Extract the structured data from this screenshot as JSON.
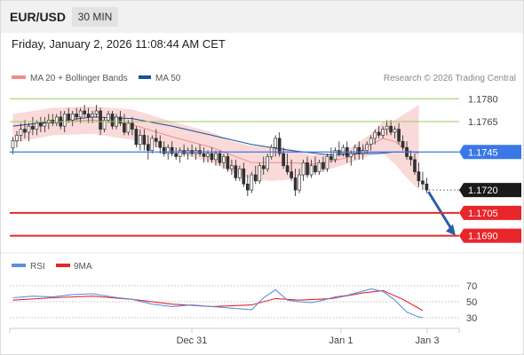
{
  "header": {
    "pair": "EUR/USD",
    "timeframe": "30 MIN",
    "timestamp": "Friday, January 2, 2026 11:08:44 AM CET"
  },
  "legend": {
    "ma20_label": "MA 20 + Bollinger Bands",
    "ma20_color": "#f08c8c",
    "ma50_label": "MA 50",
    "ma50_color": "#1f4e9c",
    "copyright": "Research © 2026 Trading Central"
  },
  "colors": {
    "up_candle": "#ffffff",
    "down_candle": "#333333",
    "candle_outline": "#222222",
    "bollinger_fill": "#fad9d9",
    "resistance": "#9acd5a",
    "pivot": "#3b78e7",
    "support": "#e8262b",
    "current": "#1a1a1a",
    "arrow": "#2a5ea6",
    "rsi": "#5b8fe0",
    "rsi_ma": "#e8262b"
  },
  "levels": [
    {
      "label": "1.1780",
      "value": 1.178,
      "type": "resistance"
    },
    {
      "label": "1.1765",
      "value": 1.1765,
      "type": "resistance"
    },
    {
      "label": "1.1745",
      "value": 1.1745,
      "type": "pivot"
    },
    {
      "label": "1.1720",
      "value": 1.172,
      "type": "current"
    },
    {
      "label": "1.1705",
      "value": 1.1705,
      "type": "support"
    },
    {
      "label": "1.1690",
      "value": 1.169,
      "type": "support"
    }
  ],
  "rsi_panel": {
    "rsi_label": "RSI",
    "ma_label": "9MA",
    "ticks": [
      {
        "label": "70",
        "value": 70
      },
      {
        "label": "50",
        "value": 50
      },
      {
        "label": "30",
        "value": 30
      }
    ]
  },
  "x_axis": {
    "labels": [
      "Dec 31",
      "Jan 1",
      "Jan 3"
    ]
  },
  "chart_data": {
    "type": "candlestick",
    "instrument": "EUR/USD",
    "ylim": [
      1.1681,
      1.1786
    ],
    "projection": {
      "from": 1.172,
      "to": 1.169
    },
    "candles": [
      [
        1.17476,
        1.17548,
        1.17436,
        1.17524
      ],
      [
        1.17524,
        1.17588,
        1.1748,
        1.1756
      ],
      [
        1.1756,
        1.1764,
        1.1752,
        1.176
      ],
      [
        1.176,
        1.1766,
        1.1754,
        1.1758
      ],
      [
        1.1758,
        1.1764,
        1.1752,
        1.1762
      ],
      [
        1.1762,
        1.1768,
        1.1756,
        1.176
      ],
      [
        1.176,
        1.1766,
        1.1756,
        1.1764
      ],
      [
        1.1764,
        1.1768,
        1.1758,
        1.1762
      ],
      [
        1.1762,
        1.1768,
        1.1758,
        1.1764
      ],
      [
        1.1764,
        1.177,
        1.176,
        1.1766
      ],
      [
        1.1766,
        1.177,
        1.1762,
        1.1764
      ],
      [
        1.1764,
        1.177,
        1.1762,
        1.1768
      ],
      [
        1.1768,
        1.1772,
        1.176,
        1.1762
      ],
      [
        1.1762,
        1.1772,
        1.1758,
        1.177
      ],
      [
        1.177,
        1.1774,
        1.1764,
        1.1766
      ],
      [
        1.1766,
        1.1772,
        1.1762,
        1.177
      ],
      [
        1.177,
        1.1774,
        1.1766,
        1.1768
      ],
      [
        1.1768,
        1.1774,
        1.1764,
        1.1772
      ],
      [
        1.1772,
        1.1776,
        1.1768,
        1.177
      ],
      [
        1.177,
        1.1774,
        1.1764,
        1.1768
      ],
      [
        1.1768,
        1.1772,
        1.1764,
        1.177
      ],
      [
        1.177,
        1.1776,
        1.1768,
        1.1772
      ],
      [
        1.1772,
        1.1774,
        1.1756,
        1.176
      ],
      [
        1.176,
        1.1768,
        1.1758,
        1.1766
      ],
      [
        1.1766,
        1.1772,
        1.1764,
        1.177
      ],
      [
        1.177,
        1.1772,
        1.176,
        1.1762
      ],
      [
        1.1762,
        1.177,
        1.176,
        1.1768
      ],
      [
        1.1768,
        1.1772,
        1.1762,
        1.1764
      ],
      [
        1.1764,
        1.177,
        1.1756,
        1.1758
      ],
      [
        1.1758,
        1.1766,
        1.1756,
        1.1764
      ],
      [
        1.1764,
        1.1768,
        1.1756,
        1.176
      ],
      [
        1.176,
        1.1762,
        1.1748,
        1.175
      ],
      [
        1.175,
        1.176,
        1.1746,
        1.1756
      ],
      [
        1.1756,
        1.176,
        1.1746,
        1.175
      ],
      [
        1.175,
        1.1756,
        1.174,
        1.1746
      ],
      [
        1.1746,
        1.1756,
        1.1744,
        1.1754
      ],
      [
        1.1754,
        1.176,
        1.1748,
        1.1752
      ],
      [
        1.1752,
        1.1756,
        1.1744,
        1.1748
      ],
      [
        1.1748,
        1.1752,
        1.1742,
        1.1744
      ],
      [
        1.1744,
        1.175,
        1.174,
        1.1748
      ],
      [
        1.1748,
        1.1752,
        1.1742,
        1.1744
      ],
      [
        1.1744,
        1.1748,
        1.174,
        1.1742
      ],
      [
        1.1742,
        1.1748,
        1.1738,
        1.1746
      ],
      [
        1.1746,
        1.175,
        1.1742,
        1.1744
      ],
      [
        1.1744,
        1.1748,
        1.174,
        1.1746
      ],
      [
        1.1746,
        1.175,
        1.1742,
        1.1744
      ],
      [
        1.1744,
        1.1748,
        1.174,
        1.1746
      ],
      [
        1.1746,
        1.175,
        1.1742,
        1.1744
      ],
      [
        1.1744,
        1.1748,
        1.1738,
        1.1742
      ],
      [
        1.1742,
        1.1746,
        1.1738,
        1.1744
      ],
      [
        1.1744,
        1.1748,
        1.1738,
        1.174
      ],
      [
        1.174,
        1.1746,
        1.1736,
        1.1744
      ],
      [
        1.1744,
        1.1746,
        1.1736,
        1.1738
      ],
      [
        1.1738,
        1.1744,
        1.1734,
        1.1742
      ],
      [
        1.1742,
        1.1744,
        1.1732,
        1.1734
      ],
      [
        1.1734,
        1.174,
        1.173,
        1.1736
      ],
      [
        1.1736,
        1.174,
        1.1726,
        1.1728
      ],
      [
        1.1728,
        1.1736,
        1.1726,
        1.1734
      ],
      [
        1.1734,
        1.1738,
        1.1722,
        1.1724
      ],
      [
        1.1724,
        1.173,
        1.1716,
        1.172
      ],
      [
        1.172,
        1.1732,
        1.1718,
        1.173
      ],
      [
        1.173,
        1.1736,
        1.1724,
        1.1726
      ],
      [
        1.1726,
        1.1738,
        1.1724,
        1.1736
      ],
      [
        1.1736,
        1.1742,
        1.173,
        1.1734
      ],
      [
        1.1734,
        1.1744,
        1.1732,
        1.1742
      ],
      [
        1.1742,
        1.175,
        1.174,
        1.1748
      ],
      [
        1.1748,
        1.1756,
        1.1742,
        1.1754
      ],
      [
        1.1754,
        1.1758,
        1.1742,
        1.1744
      ],
      [
        1.1744,
        1.1748,
        1.1734,
        1.1736
      ],
      [
        1.1736,
        1.1744,
        1.173,
        1.1732
      ],
      [
        1.1732,
        1.174,
        1.1726,
        1.1728
      ],
      [
        1.1728,
        1.1734,
        1.1716,
        1.172
      ],
      [
        1.172,
        1.1734,
        1.1718,
        1.173
      ],
      [
        1.173,
        1.174,
        1.1726,
        1.1738
      ],
      [
        1.1738,
        1.1742,
        1.1728,
        1.173
      ],
      [
        1.173,
        1.174,
        1.1728,
        1.1736
      ],
      [
        1.1736,
        1.1742,
        1.173,
        1.1732
      ],
      [
        1.1732,
        1.174,
        1.173,
        1.1738
      ],
      [
        1.1738,
        1.1742,
        1.1732,
        1.1734
      ],
      [
        1.1734,
        1.1744,
        1.1732,
        1.1742
      ],
      [
        1.1742,
        1.1748,
        1.1738,
        1.174
      ],
      [
        1.174,
        1.1748,
        1.1738,
        1.1746
      ],
      [
        1.1746,
        1.1752,
        1.1742,
        1.1744
      ],
      [
        1.1744,
        1.175,
        1.1742,
        1.1748
      ],
      [
        1.1748,
        1.1752,
        1.1738,
        1.1742
      ],
      [
        1.1742,
        1.1746,
        1.1736,
        1.1744
      ],
      [
        1.1744,
        1.175,
        1.174,
        1.1748
      ],
      [
        1.1748,
        1.1752,
        1.174,
        1.1744
      ],
      [
        1.1744,
        1.175,
        1.174,
        1.1746
      ],
      [
        1.1746,
        1.1752,
        1.1744,
        1.175
      ],
      [
        1.175,
        1.1756,
        1.1746,
        1.1754
      ],
      [
        1.1754,
        1.176,
        1.175,
        1.1758
      ],
      [
        1.1758,
        1.1762,
        1.1754,
        1.1756
      ],
      [
        1.1756,
        1.1762,
        1.1754,
        1.176
      ],
      [
        1.176,
        1.1766,
        1.1756,
        1.1762
      ],
      [
        1.1762,
        1.1766,
        1.1756,
        1.1758
      ],
      [
        1.1758,
        1.1762,
        1.1754,
        1.176
      ],
      [
        1.176,
        1.1764,
        1.175,
        1.1752
      ],
      [
        1.1752,
        1.1756,
        1.1746,
        1.1748
      ],
      [
        1.1748,
        1.1752,
        1.174,
        1.1742
      ],
      [
        1.1742,
        1.1746,
        1.1736,
        1.174
      ],
      [
        1.174,
        1.1744,
        1.173,
        1.1732
      ],
      [
        1.1732,
        1.1738,
        1.1722,
        1.1726
      ],
      [
        1.1726,
        1.1732,
        1.172,
        1.1724
      ],
      [
        1.1724,
        1.1728,
        1.1718,
        1.172
      ]
    ],
    "ma20": [
      [
        0,
        1.1762
      ],
      [
        10,
        1.1765
      ],
      [
        20,
        1.1766
      ],
      [
        30,
        1.1763
      ],
      [
        40,
        1.1755
      ],
      [
        50,
        1.1748
      ],
      [
        55,
        1.1743
      ],
      [
        60,
        1.1738
      ],
      [
        65,
        1.1738
      ],
      [
        70,
        1.1738
      ],
      [
        75,
        1.1737
      ],
      [
        80,
        1.1739
      ],
      [
        85,
        1.1742
      ],
      [
        90,
        1.175
      ],
      [
        93,
        1.1754
      ],
      [
        96,
        1.1752
      ],
      [
        99,
        1.1746
      ],
      [
        102,
        1.1744
      ]
    ],
    "ma50": [
      [
        0,
        1.1762
      ],
      [
        20,
        1.1768
      ],
      [
        30,
        1.1767
      ],
      [
        40,
        1.1762
      ],
      [
        50,
        1.1756
      ],
      [
        60,
        1.175
      ],
      [
        70,
        1.1746
      ],
      [
        80,
        1.1743
      ],
      [
        88,
        1.1744
      ],
      [
        92,
        1.1744
      ],
      [
        96,
        1.1745
      ],
      [
        102,
        1.1745
      ]
    ],
    "bollinger_upper": [
      [
        0,
        1.177
      ],
      [
        10,
        1.1774
      ],
      [
        20,
        1.1775
      ],
      [
        30,
        1.1773
      ],
      [
        40,
        1.1765
      ],
      [
        50,
        1.1758
      ],
      [
        55,
        1.1752
      ],
      [
        60,
        1.1749
      ],
      [
        65,
        1.1748
      ],
      [
        70,
        1.1747
      ],
      [
        75,
        1.1743
      ],
      [
        80,
        1.1744
      ],
      [
        85,
        1.1748
      ],
      [
        90,
        1.1757
      ],
      [
        93,
        1.1765
      ],
      [
        96,
        1.1766
      ],
      [
        99,
        1.1771
      ],
      [
        102,
        1.1776
      ]
    ],
    "bollinger_lower": [
      [
        0,
        1.1751
      ],
      [
        10,
        1.1756
      ],
      [
        20,
        1.1757
      ],
      [
        30,
        1.1753
      ],
      [
        40,
        1.1745
      ],
      [
        50,
        1.1738
      ],
      [
        55,
        1.1732
      ],
      [
        60,
        1.1727
      ],
      [
        65,
        1.1726
      ],
      [
        70,
        1.1727
      ],
      [
        75,
        1.1731
      ],
      [
        80,
        1.1734
      ],
      [
        85,
        1.1738
      ],
      [
        90,
        1.1743
      ],
      [
        93,
        1.1744
      ],
      [
        96,
        1.1737
      ],
      [
        99,
        1.1728
      ],
      [
        102,
        1.172
      ]
    ],
    "rsi": [
      [
        0,
        55
      ],
      [
        5,
        57
      ],
      [
        10,
        56
      ],
      [
        15,
        59
      ],
      [
        20,
        60
      ],
      [
        25,
        56
      ],
      [
        30,
        53
      ],
      [
        35,
        47
      ],
      [
        40,
        44
      ],
      [
        45,
        46
      ],
      [
        50,
        44
      ],
      [
        55,
        42
      ],
      [
        60,
        40
      ],
      [
        63,
        55
      ],
      [
        66,
        65
      ],
      [
        69,
        52
      ],
      [
        72,
        50
      ],
      [
        75,
        49
      ],
      [
        78,
        52
      ],
      [
        81,
        56
      ],
      [
        84,
        58
      ],
      [
        87,
        62
      ],
      [
        90,
        66
      ],
      [
        93,
        63
      ],
      [
        96,
        52
      ],
      [
        99,
        37
      ],
      [
        102,
        31
      ],
      [
        103,
        30
      ]
    ],
    "rsi_ma": [
      [
        0,
        52
      ],
      [
        10,
        55
      ],
      [
        20,
        57
      ],
      [
        30,
        53
      ],
      [
        40,
        47
      ],
      [
        50,
        44
      ],
      [
        60,
        46
      ],
      [
        66,
        54
      ],
      [
        72,
        52
      ],
      [
        80,
        54
      ],
      [
        88,
        61
      ],
      [
        93,
        64
      ],
      [
        98,
        53
      ],
      [
        103,
        39
      ]
    ]
  }
}
